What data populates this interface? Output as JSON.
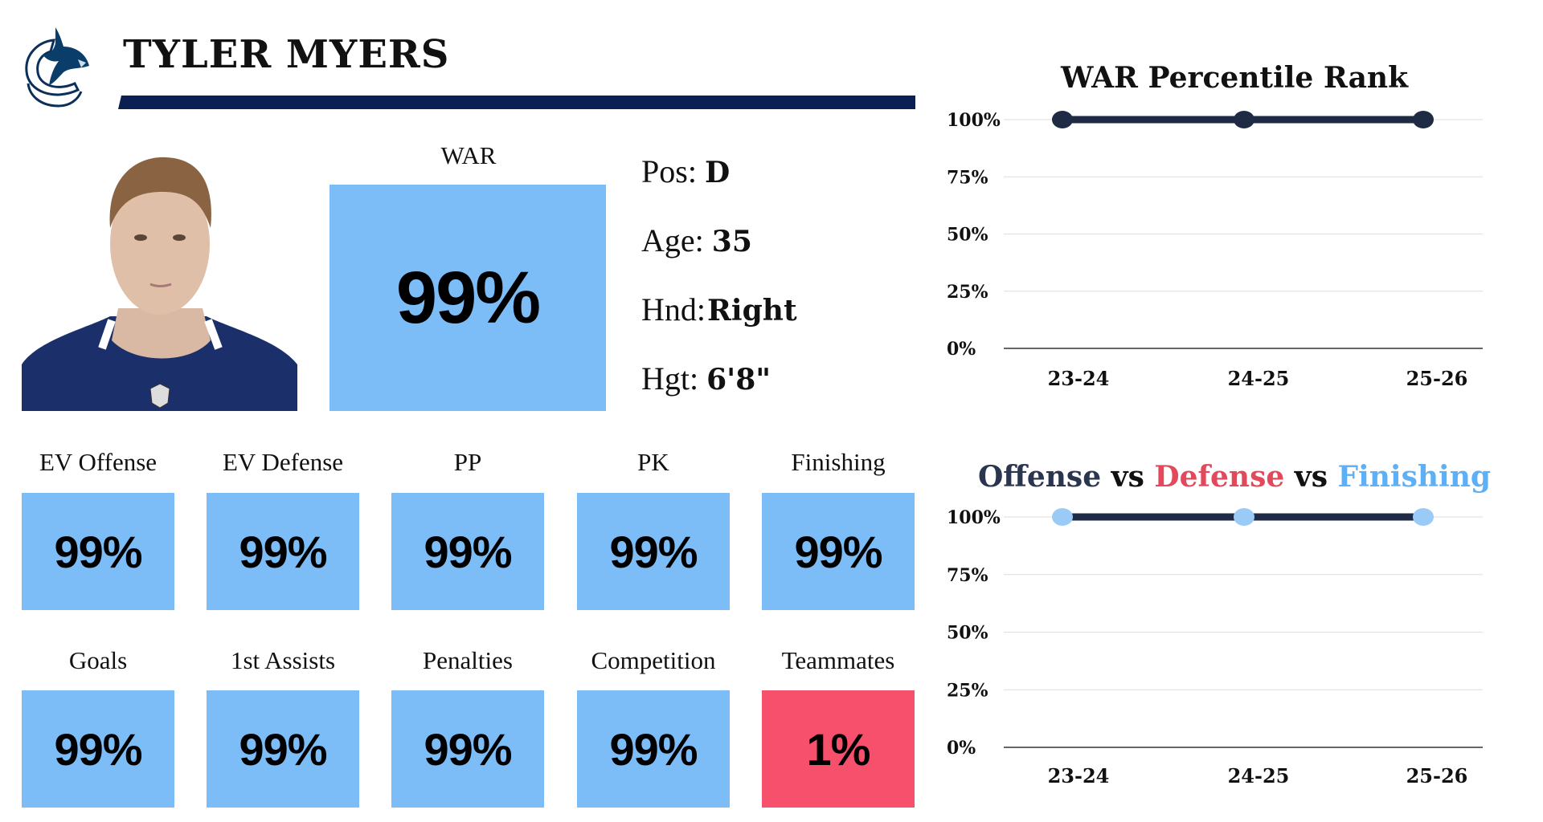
{
  "header": {
    "player_name": "TYLER MYERS",
    "team_logo": "vancouver-canucks-orca-logo"
  },
  "war": {
    "label": "WAR",
    "value": "99%"
  },
  "info": [
    {
      "key": "Pos:",
      "value": "D"
    },
    {
      "key": "Age:",
      "value": "35"
    },
    {
      "key": "Hnd:",
      "value": "Right"
    },
    {
      "key": "Hgt:",
      "value": "6'8\""
    }
  ],
  "metrics": [
    {
      "label": "EV Offense",
      "value": "99%",
      "color": "#7CBDF7"
    },
    {
      "label": "EV Defense",
      "value": "99%",
      "color": "#7CBDF7"
    },
    {
      "label": "PP",
      "value": "99%",
      "color": "#7CBDF7"
    },
    {
      "label": "PK",
      "value": "99%",
      "color": "#7CBDF7"
    },
    {
      "label": "Finishing",
      "value": "99%",
      "color": "#7CBDF7"
    },
    {
      "label": "Goals",
      "value": "99%",
      "color": "#7CBDF7"
    },
    {
      "label": "1st Assists",
      "value": "99%",
      "color": "#7CBDF7"
    },
    {
      "label": "Penalties",
      "value": "99%",
      "color": "#7CBDF7"
    },
    {
      "label": "Competition",
      "value": "99%",
      "color": "#7CBDF7"
    },
    {
      "label": "Teammates",
      "value": "1%",
      "color": "#F7506D"
    }
  ],
  "chart_data": [
    {
      "type": "line",
      "title": "WAR Percentile Rank",
      "categories": [
        "23-24",
        "24-25",
        "25-26"
      ],
      "yticks": [
        "0%",
        "25%",
        "50%",
        "75%",
        "100%"
      ],
      "ylim": [
        0,
        100
      ],
      "grid": true,
      "series": [
        {
          "values": [
            100,
            100,
            100
          ],
          "line_color": "#1F2A44",
          "marker_color": "#1F2A44"
        }
      ]
    },
    {
      "type": "line",
      "title_parts": [
        {
          "text": "Offense",
          "color": "#2A3550"
        },
        {
          "text": " vs ",
          "color": "#111111"
        },
        {
          "text": "Defense",
          "color": "#E24A5C"
        },
        {
          "text": " vs ",
          "color": "#111111"
        },
        {
          "text": "Finishing",
          "color": "#5DB0F6"
        }
      ],
      "categories": [
        "23-24",
        "24-25",
        "25-26"
      ],
      "yticks": [
        "0%",
        "25%",
        "50%",
        "75%",
        "100%"
      ],
      "ylim": [
        0,
        100
      ],
      "grid": true,
      "series": [
        {
          "values": [
            100,
            100,
            100
          ],
          "line_color": "#1F2A44",
          "marker_color": "#9ACBF7"
        }
      ]
    }
  ]
}
